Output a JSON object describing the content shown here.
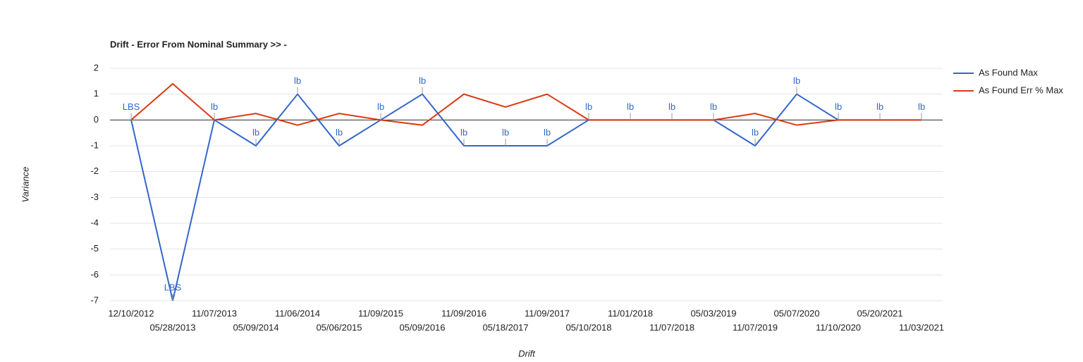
{
  "chart_data": {
    "type": "line",
    "title": "Drift - Error From Nominal Summary >> -",
    "x_label": "Drift",
    "y_label": "Variance",
    "categories": [
      "12/10/2012",
      "05/28/2013",
      "11/07/2013",
      "05/09/2014",
      "11/06/2014",
      "05/06/2015",
      "11/09/2015",
      "05/09/2016",
      "11/09/2016",
      "05/18/2017",
      "11/09/2017",
      "05/10/2018",
      "11/01/2018",
      "11/07/2018",
      "05/03/2019",
      "11/07/2019",
      "05/07/2020",
      "11/10/2020",
      "05/20/2021",
      "11/03/2021"
    ],
    "series": [
      {
        "name": "As Found Max",
        "color": "#3366cc",
        "values": [
          0,
          -7,
          0,
          -1,
          1,
          -1,
          0,
          1,
          -1,
          -1,
          -1,
          0,
          0,
          0,
          0,
          -1,
          1,
          0,
          0,
          0
        ],
        "annotations": [
          "LBS",
          "LBS",
          "lb",
          "lb",
          "lb",
          "lb",
          "lb",
          "lb",
          "lb",
          "lb",
          "lb",
          "lb",
          "lb",
          "lb",
          "lb",
          "lb",
          "lb",
          "lb",
          "lb",
          "lb"
        ]
      },
      {
        "name": "As Found Err % Max",
        "color": "#dc3912",
        "values": [
          0,
          1.4,
          0,
          0.25,
          -0.2,
          0.25,
          0,
          -0.2,
          1,
          0.5,
          1,
          0,
          0,
          0,
          0,
          0.25,
          -0.2,
          0,
          0,
          0
        ]
      }
    ],
    "ylim": [
      -7,
      2
    ],
    "yticks": [
      -7,
      -6,
      -5,
      -4,
      -3,
      -2,
      -1,
      0,
      1,
      2
    ],
    "grid": true,
    "legend": "right"
  }
}
